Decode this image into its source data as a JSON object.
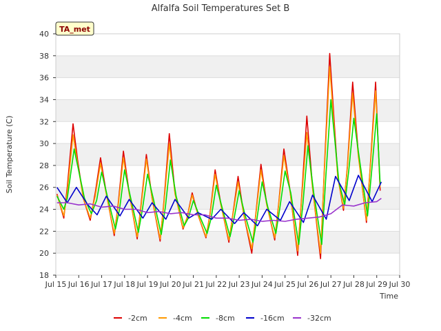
{
  "chart_data": {
    "type": "line",
    "title": "Alfalfa Soil Temperatures Set B",
    "xlabel": "Time",
    "ylabel": "Soil Temperature (C)",
    "badge": "TA_met",
    "xlim": [
      15,
      30
    ],
    "ylim": [
      18,
      40
    ],
    "yticks": [
      18,
      20,
      22,
      24,
      26,
      28,
      30,
      32,
      34,
      36,
      38,
      40
    ],
    "xticks": [
      {
        "value": 15,
        "label": "Jul 15"
      },
      {
        "value": 16,
        "label": "Jul 16"
      },
      {
        "value": 17,
        "label": "Jul 17"
      },
      {
        "value": 18,
        "label": "Jul 18"
      },
      {
        "value": 19,
        "label": "Jul 19"
      },
      {
        "value": 20,
        "label": "Jul 20"
      },
      {
        "value": 21,
        "label": "Jul 21"
      },
      {
        "value": 22,
        "label": "Jul 22"
      },
      {
        "value": 23,
        "label": "Jul 23"
      },
      {
        "value": 24,
        "label": "Jul 24"
      },
      {
        "value": 25,
        "label": "Jul 25"
      },
      {
        "value": 26,
        "label": "Jul 26"
      },
      {
        "value": 27,
        "label": "Jul 27"
      },
      {
        "value": 28,
        "label": "Jul 28"
      },
      {
        "value": 29,
        "label": "Jul 29"
      },
      {
        "value": 30,
        "label": "Jul 30"
      }
    ],
    "series": [
      {
        "name": "-2cm",
        "color": "#dd0000",
        "x": [
          15.05,
          15.35,
          15.5,
          15.75,
          15.95,
          16.2,
          16.5,
          16.72,
          16.95,
          17.2,
          17.55,
          17.72,
          17.95,
          18.2,
          18.55,
          18.72,
          18.95,
          19.2,
          19.55,
          19.72,
          19.95,
          20.2,
          20.55,
          20.72,
          20.95,
          21.2,
          21.55,
          21.72,
          21.95,
          22.2,
          22.55,
          22.72,
          22.95,
          23.2,
          23.55,
          23.72,
          23.95,
          24.2,
          24.55,
          24.72,
          24.95,
          25.2,
          25.55,
          25.72,
          25.95,
          26.2,
          26.55,
          26.72,
          26.95,
          27.3,
          27.55,
          27.72,
          27.95,
          28.2,
          28.55,
          28.72,
          28.95,
          29.15
        ],
        "y": [
          25.4,
          23.2,
          26.0,
          31.8,
          28.5,
          25.0,
          23.0,
          25.5,
          28.7,
          25.5,
          21.6,
          24.5,
          29.3,
          25.5,
          21.3,
          24.5,
          29.0,
          25.0,
          21.1,
          24.8,
          30.9,
          25.5,
          22.2,
          23.2,
          25.5,
          23.5,
          21.4,
          23.5,
          27.6,
          24.5,
          21.0,
          23.5,
          27.0,
          23.5,
          20.0,
          23.5,
          28.1,
          24.5,
          21.2,
          24.5,
          29.5,
          26.0,
          19.8,
          25.0,
          32.5,
          26.0,
          19.5,
          28.0,
          38.2,
          27.0,
          23.9,
          28.0,
          35.6,
          29.0,
          22.8,
          28.0,
          35.6,
          25.7
        ]
      },
      {
        "name": "-4cm",
        "color": "#ff9900",
        "x": [
          15.05,
          15.35,
          15.5,
          15.75,
          15.95,
          16.2,
          16.5,
          16.72,
          16.95,
          17.2,
          17.55,
          17.72,
          17.95,
          18.2,
          18.55,
          18.72,
          18.95,
          19.2,
          19.55,
          19.72,
          19.95,
          20.2,
          20.55,
          20.72,
          20.95,
          21.2,
          21.55,
          21.72,
          21.95,
          22.2,
          22.55,
          22.72,
          22.95,
          23.2,
          23.55,
          23.72,
          23.95,
          24.2,
          24.55,
          24.72,
          24.95,
          25.2,
          25.55,
          25.72,
          25.95,
          26.2,
          26.55,
          26.72,
          26.95,
          27.3,
          27.55,
          27.72,
          27.95,
          28.2,
          28.55,
          28.72,
          28.95,
          29.15
        ],
        "y": [
          25.3,
          23.4,
          25.6,
          30.8,
          28.2,
          25.0,
          23.2,
          25.2,
          28.2,
          25.4,
          21.8,
          24.3,
          28.7,
          25.4,
          21.5,
          24.3,
          28.6,
          25.0,
          21.3,
          24.6,
          30.0,
          25.4,
          22.3,
          23.2,
          25.3,
          23.5,
          21.5,
          23.4,
          27.2,
          24.4,
          21.2,
          23.4,
          26.5,
          23.5,
          20.4,
          23.4,
          27.6,
          24.4,
          21.4,
          24.4,
          28.9,
          25.9,
          20.2,
          24.8,
          31.0,
          25.9,
          20.0,
          27.7,
          37.0,
          26.9,
          24.1,
          27.8,
          34.6,
          28.8,
          23.0,
          27.8,
          34.8,
          26.0
        ]
      },
      {
        "name": "-8cm",
        "color": "#00dd00",
        "x": [
          15.05,
          15.35,
          15.5,
          15.8,
          16.0,
          16.25,
          16.55,
          16.78,
          17.0,
          17.25,
          17.6,
          17.78,
          18.0,
          18.25,
          18.6,
          18.78,
          19.0,
          19.25,
          19.6,
          19.78,
          20.0,
          20.25,
          20.6,
          20.78,
          21.0,
          21.25,
          21.6,
          21.78,
          22.0,
          22.25,
          22.6,
          22.78,
          23.0,
          23.25,
          23.6,
          23.78,
          24.0,
          24.25,
          24.6,
          24.78,
          25.0,
          25.25,
          25.6,
          25.78,
          26.0,
          26.25,
          26.6,
          26.78,
          27.0,
          27.35,
          27.6,
          27.78,
          28.0,
          28.25,
          28.6,
          28.78,
          29.0,
          29.15
        ],
        "y": [
          25.2,
          24.0,
          25.0,
          29.5,
          27.5,
          25.0,
          23.6,
          24.8,
          27.4,
          25.2,
          22.2,
          24.0,
          27.6,
          25.2,
          21.9,
          24.0,
          27.2,
          25.0,
          21.7,
          24.2,
          28.5,
          25.2,
          22.5,
          23.2,
          24.8,
          23.5,
          21.8,
          23.2,
          26.2,
          24.2,
          21.5,
          23.2,
          25.7,
          23.5,
          21.0,
          23.2,
          26.5,
          24.2,
          21.8,
          24.2,
          27.5,
          25.5,
          20.8,
          24.5,
          29.8,
          25.5,
          20.8,
          27.0,
          34.0,
          26.5,
          24.4,
          27.5,
          32.3,
          28.5,
          23.4,
          27.5,
          32.7,
          26.3
        ]
      },
      {
        "name": "-16cm",
        "color": "#0000cc",
        "x": [
          15.05,
          15.5,
          15.9,
          16.4,
          16.8,
          17.2,
          17.8,
          18.2,
          18.8,
          19.2,
          19.8,
          20.2,
          20.8,
          21.2,
          21.8,
          22.2,
          22.8,
          23.2,
          23.8,
          24.2,
          24.8,
          25.2,
          25.8,
          26.2,
          26.8,
          27.2,
          27.8,
          28.2,
          28.8,
          29.2
        ],
        "y": [
          26.0,
          24.6,
          26.0,
          24.4,
          23.5,
          25.2,
          23.4,
          24.9,
          23.2,
          24.6,
          23.1,
          24.9,
          23.2,
          23.7,
          23.1,
          24.0,
          22.7,
          23.7,
          22.5,
          24.0,
          23.0,
          24.7,
          22.8,
          25.3,
          23.1,
          27.0,
          24.8,
          27.1,
          24.7,
          26.5
        ]
      },
      {
        "name": "-32cm",
        "color": "#9933cc",
        "x": [
          15.05,
          15.5,
          16.0,
          16.5,
          17.0,
          17.5,
          18.0,
          18.5,
          19.0,
          19.5,
          20.0,
          20.5,
          21.0,
          21.5,
          22.0,
          22.5,
          23.0,
          23.5,
          24.0,
          24.5,
          25.0,
          25.5,
          26.0,
          26.5,
          27.0,
          27.5,
          28.0,
          28.5,
          29.0,
          29.2
        ],
        "y": [
          24.6,
          24.6,
          24.4,
          24.5,
          24.2,
          24.3,
          24.0,
          24.0,
          23.7,
          23.8,
          23.6,
          23.7,
          23.5,
          23.5,
          23.2,
          23.2,
          23.0,
          23.1,
          22.9,
          23.0,
          22.9,
          23.1,
          23.2,
          23.3,
          23.6,
          24.4,
          24.3,
          24.6,
          24.7,
          25.0
        ]
      }
    ]
  }
}
